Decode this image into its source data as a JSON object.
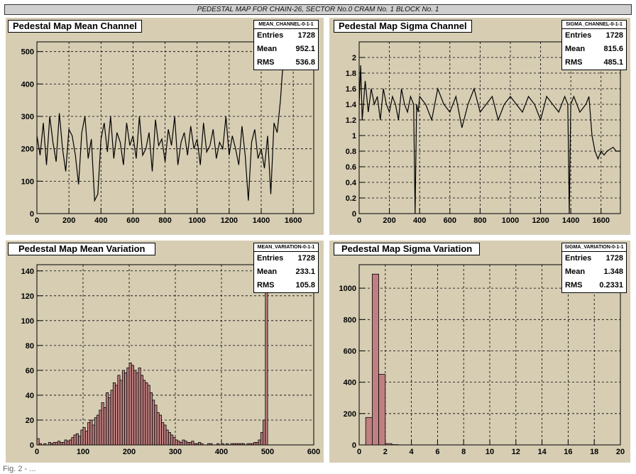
{
  "header": {
    "title": "PEDESTAL MAP FOR CHAIN-26, SECTOR No.0 CRAM No. 1 BLOCK No. 1"
  },
  "footer": {
    "text": "Fig. 2 - ..."
  },
  "colors": {
    "pad_bg": "#d6cdb3",
    "hist_fill": "#c08080",
    "line": "#000000",
    "grid": "#000000"
  },
  "panels": [
    {
      "title": "Pedestal Map Mean Channel",
      "stats": {
        "name": "MEAN_CHANNEL-0-1-1",
        "entries_label": "Entries",
        "entries": "1728",
        "mean_label": "Mean",
        "mean": "952.1",
        "rms_label": "RMS",
        "rms": "536.8"
      }
    },
    {
      "title": "Pedestal Map Sigma Channel",
      "stats": {
        "name": "SIGMA_CHANNEL-0-1-1",
        "entries_label": "Entries",
        "entries": "1728",
        "mean_label": "Mean",
        "mean": "815.6",
        "rms_label": "RMS",
        "rms": "485.1"
      }
    },
    {
      "title": "Pedestal Map Mean Variation",
      "stats": {
        "name": "MEAN_VARIATION-0-1-1",
        "entries_label": "Entries",
        "entries": "1728",
        "mean_label": "Mean",
        "mean": "233.1",
        "rms_label": "RMS",
        "rms": "105.8"
      }
    },
    {
      "title": "Pedestal Map Sigma Variation",
      "stats": {
        "name": "SIGMA_VARIATION-0-1-1",
        "entries_label": "Entries",
        "entries": "1728",
        "mean_label": "Mean",
        "mean": "1.348",
        "rms_label": "RMS",
        "rms": "0.2331"
      }
    }
  ],
  "chart_data": [
    {
      "type": "line",
      "title": "Pedestal Map Mean Channel",
      "xlim": [
        0,
        1728
      ],
      "ylim": [
        0,
        530
      ],
      "xticks": [
        0,
        200,
        400,
        600,
        800,
        1000,
        1200,
        1400,
        1600
      ],
      "yticks": [
        0,
        100,
        200,
        300,
        400,
        500
      ],
      "grid": true,
      "series": [
        {
          "x": [
            0,
            20,
            40,
            60,
            80,
            100,
            120,
            140,
            160,
            180,
            200,
            220,
            240,
            260,
            280,
            300,
            320,
            340,
            360,
            380,
            400,
            420,
            440,
            460,
            480,
            500,
            520,
            540,
            560,
            580,
            600,
            620,
            640,
            660,
            680,
            700,
            720,
            740,
            760,
            780,
            800,
            820,
            840,
            860,
            880,
            900,
            920,
            940,
            960,
            980,
            1000,
            1020,
            1040,
            1060,
            1080,
            1100,
            1120,
            1140,
            1160,
            1180,
            1200,
            1220,
            1240,
            1260,
            1280,
            1300,
            1320,
            1340,
            1360,
            1380,
            1400,
            1420,
            1440,
            1460,
            1480,
            1500,
            1520,
            1530,
            1540
          ],
          "y": [
            240,
            180,
            280,
            150,
            300,
            220,
            160,
            310,
            200,
            130,
            260,
            240,
            180,
            90,
            250,
            300,
            170,
            230,
            40,
            60,
            230,
            280,
            190,
            300,
            170,
            250,
            220,
            150,
            280,
            210,
            240,
            170,
            300,
            180,
            200,
            250,
            130,
            290,
            210,
            230,
            160,
            260,
            210,
            300,
            150,
            220,
            250,
            180,
            270,
            200,
            230,
            150,
            280,
            190,
            210,
            260,
            170,
            220,
            200,
            300,
            180,
            240,
            200,
            150,
            270,
            180,
            40,
            220,
            260,
            170,
            200,
            140,
            240,
            60,
            280,
            250,
            350,
            420,
            480
          ]
        }
      ]
    },
    {
      "type": "line",
      "title": "Pedestal Map Sigma Channel",
      "xlim": [
        0,
        1728
      ],
      "ylim": [
        0,
        2.2
      ],
      "xticks": [
        0,
        200,
        400,
        600,
        800,
        1000,
        1200,
        1400,
        1600
      ],
      "yticks": [
        0,
        0.2,
        0.4,
        0.6,
        0.8,
        1,
        1.2,
        1.4,
        1.6,
        1.8,
        2
      ],
      "grid": true,
      "series": [
        {
          "x": [
            0,
            10,
            20,
            40,
            60,
            80,
            100,
            120,
            140,
            160,
            180,
            200,
            220,
            240,
            260,
            280,
            300,
            320,
            340,
            360,
            370,
            380,
            390,
            400,
            440,
            480,
            520,
            560,
            600,
            640,
            680,
            720,
            760,
            800,
            840,
            880,
            920,
            960,
            1000,
            1040,
            1080,
            1120,
            1160,
            1200,
            1240,
            1280,
            1320,
            1360,
            1380,
            1390,
            1400,
            1420,
            1460,
            1500,
            1520,
            1540,
            1560,
            1580,
            1600,
            1620,
            1640,
            1680,
            1700,
            1728
          ],
          "y": [
            1.4,
            1.9,
            1.2,
            1.7,
            1.3,
            1.6,
            1.4,
            1.5,
            1.2,
            1.6,
            1.4,
            1.3,
            1.5,
            1.4,
            1.2,
            1.6,
            1.4,
            1.3,
            1.5,
            1.4,
            0.0,
            1.4,
            1.3,
            1.5,
            1.4,
            1.2,
            1.6,
            1.4,
            1.3,
            1.5,
            1.1,
            1.4,
            1.6,
            1.3,
            1.4,
            1.5,
            1.2,
            1.4,
            1.5,
            1.4,
            1.3,
            1.5,
            1.4,
            1.2,
            1.5,
            1.4,
            1.3,
            1.5,
            1.4,
            0.0,
            1.4,
            1.5,
            1.3,
            1.4,
            1.5,
            1.0,
            0.8,
            0.7,
            0.8,
            0.75,
            0.8,
            0.85,
            0.8,
            0.8
          ]
        }
      ]
    },
    {
      "type": "bar",
      "title": "Pedestal Map Mean Variation",
      "xlim": [
        0,
        600
      ],
      "ylim": [
        0,
        145
      ],
      "xticks": [
        0,
        100,
        200,
        300,
        400,
        500,
        600
      ],
      "yticks": [
        0,
        20,
        40,
        60,
        80,
        100,
        120,
        140
      ],
      "grid": true,
      "bin_width": 5,
      "bin_start": 0,
      "values": [
        5,
        1,
        0,
        1,
        0,
        2,
        1,
        2,
        2,
        3,
        2,
        2,
        4,
        3,
        4,
        6,
        8,
        9,
        7,
        12,
        14,
        11,
        18,
        20,
        16,
        22,
        24,
        28,
        34,
        30,
        42,
        38,
        44,
        50,
        48,
        56,
        52,
        60,
        58,
        62,
        66,
        64,
        60,
        58,
        62,
        56,
        52,
        50,
        48,
        42,
        36,
        32,
        26,
        24,
        18,
        16,
        12,
        10,
        8,
        6,
        4,
        3,
        2,
        4,
        3,
        2,
        2,
        3,
        1,
        1,
        2,
        1,
        0,
        0,
        1,
        1,
        0,
        0,
        1,
        0,
        1,
        0,
        1,
        0,
        1,
        1,
        1,
        1,
        1,
        1,
        0,
        1,
        1,
        1,
        2,
        2,
        4,
        10,
        20,
        135,
        0,
        0,
        0,
        0,
        0,
        0,
        0,
        0,
        0,
        0,
        0,
        0,
        0,
        0,
        0,
        0,
        0,
        0,
        0,
        0
      ]
    },
    {
      "type": "bar",
      "title": "Pedestal Map Sigma Variation",
      "xlim": [
        0,
        20
      ],
      "ylim": [
        0,
        1150
      ],
      "xticks": [
        0,
        2,
        4,
        6,
        8,
        10,
        12,
        14,
        16,
        18,
        20
      ],
      "yticks": [
        0,
        200,
        400,
        600,
        800,
        1000
      ],
      "grid": true,
      "bin_width": 0.5,
      "bin_start": 0.5,
      "values": [
        175,
        1090,
        450,
        8,
        2,
        0,
        0,
        0,
        0,
        0,
        0,
        0,
        0,
        0,
        0,
        0,
        0,
        0,
        0,
        0,
        0,
        0,
        0,
        0,
        0,
        0,
        0,
        0,
        0,
        0,
        0,
        0,
        0,
        0,
        0,
        0,
        0,
        0,
        0
      ]
    }
  ]
}
